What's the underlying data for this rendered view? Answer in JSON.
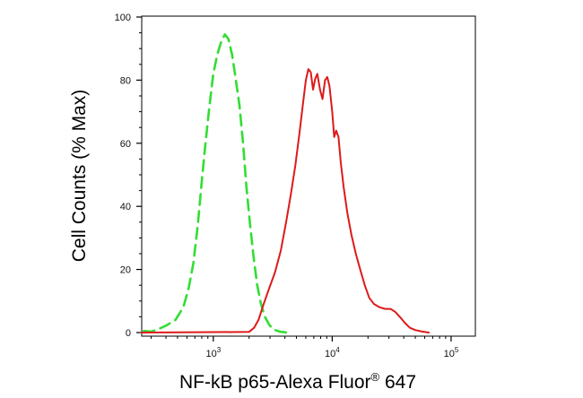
{
  "chart_data": {
    "type": "line",
    "title": "",
    "xlabel": "NF-kB p65-Alexa Fluor",
    "xlabel_superscript": "®",
    "xlabel_suffix": " 647",
    "ylabel": "Cell Counts (% Max)",
    "x_scale": "log",
    "xlim": [
      250,
      160000
    ],
    "ylim": [
      0,
      100
    ],
    "y_ticks": [
      0,
      20,
      40,
      60,
      80,
      100
    ],
    "x_ticks": [
      {
        "value": 1000,
        "base": "10",
        "exp": "3"
      },
      {
        "value": 10000,
        "base": "10",
        "exp": "4"
      },
      {
        "value": 100000,
        "base": "10",
        "exp": "5"
      }
    ],
    "grid": false,
    "legend": "none",
    "series": [
      {
        "color": "#33dd33",
        "dash": "dashed",
        "points": [
          [
            260,
            0.5
          ],
          [
            300,
            0.3
          ],
          [
            340,
            1.0
          ],
          [
            400,
            2.2
          ],
          [
            480,
            4.0
          ],
          [
            560,
            8.0
          ],
          [
            620,
            14.0
          ],
          [
            680,
            22.0
          ],
          [
            740,
            34.0
          ],
          [
            800,
            48.0
          ],
          [
            860,
            60.0
          ],
          [
            930,
            72.0
          ],
          [
            1000,
            82.0
          ],
          [
            1080,
            88.0
          ],
          [
            1160,
            92.0
          ],
          [
            1250,
            94.5
          ],
          [
            1340,
            93.0
          ],
          [
            1440,
            88.0
          ],
          [
            1550,
            80.0
          ],
          [
            1660,
            72.0
          ],
          [
            1780,
            60.0
          ],
          [
            1900,
            46.0
          ],
          [
            2040,
            34.0
          ],
          [
            2180,
            24.0
          ],
          [
            2340,
            15.0
          ],
          [
            2520,
            9.0
          ],
          [
            2720,
            5.0
          ],
          [
            2950,
            2.5
          ],
          [
            3200,
            1.0
          ],
          [
            3600,
            0.3
          ],
          [
            4200,
            0
          ]
        ]
      },
      {
        "color": "#dd1a1a",
        "dash": "solid",
        "points": [
          [
            250,
            0
          ],
          [
            2000,
            0.2
          ],
          [
            2200,
            1.5
          ],
          [
            2400,
            4.0
          ],
          [
            2650,
            9.0
          ],
          [
            2950,
            14.0
          ],
          [
            3300,
            19.0
          ],
          [
            3700,
            26.0
          ],
          [
            4100,
            35.0
          ],
          [
            4500,
            44.0
          ],
          [
            4900,
            53.0
          ],
          [
            5300,
            63.0
          ],
          [
            5700,
            73.0
          ],
          [
            6000,
            80.0
          ],
          [
            6300,
            83.5
          ],
          [
            6600,
            82.5
          ],
          [
            6900,
            77.0
          ],
          [
            7200,
            80.5
          ],
          [
            7500,
            82.0
          ],
          [
            7900,
            77.0
          ],
          [
            8300,
            74.0
          ],
          [
            8700,
            80.0
          ],
          [
            9100,
            81.0
          ],
          [
            9500,
            78.0
          ],
          [
            10000,
            70.0
          ],
          [
            10400,
            62.0
          ],
          [
            10800,
            64.0
          ],
          [
            11300,
            62.0
          ],
          [
            11800,
            54.0
          ],
          [
            12500,
            46.0
          ],
          [
            13400,
            38.0
          ],
          [
            14500,
            31.0
          ],
          [
            15800,
            25.0
          ],
          [
            17200,
            20.0
          ],
          [
            18800,
            15.0
          ],
          [
            20500,
            11.0
          ],
          [
            22500,
            9.0
          ],
          [
            25000,
            8.0
          ],
          [
            28000,
            7.5
          ],
          [
            31000,
            7.5
          ],
          [
            34000,
            6.5
          ],
          [
            37000,
            5.0
          ],
          [
            41000,
            3.0
          ],
          [
            45000,
            1.5
          ],
          [
            50000,
            0.8
          ],
          [
            57000,
            0.3
          ],
          [
            65000,
            0
          ]
        ]
      }
    ]
  }
}
